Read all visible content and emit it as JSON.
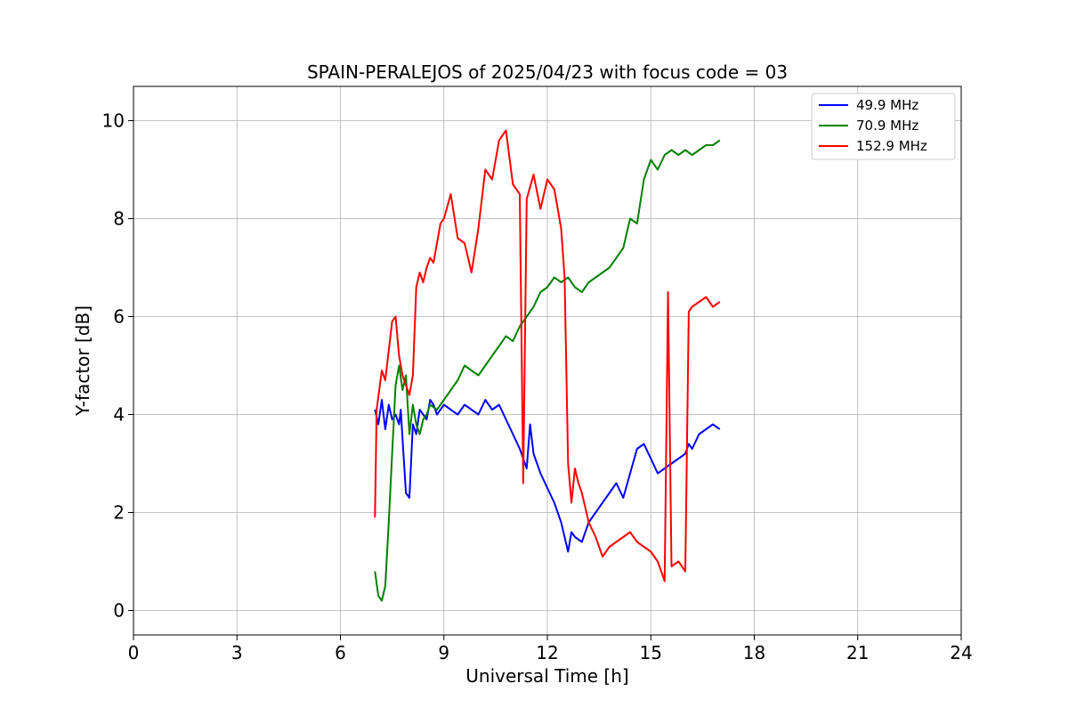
{
  "chart_data": {
    "type": "line",
    "title": "SPAIN-PERALEJOS of 2025/04/23 with focus code = 03",
    "xlabel": "Universal Time [h]",
    "ylabel": "Y-factor [dB]",
    "xlim": [
      0,
      24
    ],
    "ylim": [
      -0.5,
      10.7
    ],
    "xticks": [
      0,
      3,
      6,
      9,
      12,
      15,
      18,
      21,
      24
    ],
    "yticks": [
      0,
      2,
      4,
      6,
      8,
      10
    ],
    "grid": true,
    "legend_position": "top-right",
    "series": [
      {
        "name": "  49.9 MHz",
        "color": "#0000ff",
        "x": [
          7.0,
          7.1,
          7.2,
          7.3,
          7.4,
          7.5,
          7.6,
          7.7,
          7.75,
          7.8,
          7.9,
          8.0,
          8.1,
          8.2,
          8.3,
          8.4,
          8.5,
          8.6,
          8.7,
          8.8,
          8.9,
          9.0,
          9.2,
          9.4,
          9.6,
          9.8,
          10.0,
          10.2,
          10.4,
          10.6,
          10.8,
          11.0,
          11.2,
          11.4,
          11.5,
          11.6,
          11.8,
          12.0,
          12.2,
          12.4,
          12.5,
          12.6,
          12.7,
          12.8,
          13.0,
          13.2,
          13.4,
          13.6,
          13.8,
          14.0,
          14.2,
          14.4,
          14.6,
          14.8,
          15.0,
          15.2,
          15.4,
          15.6,
          15.8,
          16.0,
          16.1,
          16.2,
          16.4,
          16.6,
          16.8,
          17.0
        ],
        "y": [
          4.1,
          3.8,
          4.3,
          3.7,
          4.2,
          3.9,
          4.0,
          3.8,
          4.1,
          3.5,
          2.4,
          2.3,
          3.8,
          3.6,
          4.1,
          4.0,
          3.9,
          4.3,
          4.2,
          4.0,
          4.1,
          4.2,
          4.1,
          4.0,
          4.2,
          4.1,
          4.0,
          4.3,
          4.1,
          4.2,
          3.9,
          3.6,
          3.3,
          2.9,
          3.8,
          3.2,
          2.8,
          2.5,
          2.2,
          1.8,
          1.5,
          1.2,
          1.6,
          1.5,
          1.4,
          1.8,
          2.0,
          2.2,
          2.4,
          2.6,
          2.3,
          2.8,
          3.3,
          3.4,
          3.1,
          2.8,
          2.9,
          3.0,
          3.1,
          3.2,
          3.4,
          3.3,
          3.6,
          3.7,
          3.8,
          3.7
        ]
      },
      {
        "name": "  70.9 MHz",
        "color": "#008000",
        "x": [
          7.0,
          7.1,
          7.2,
          7.3,
          7.4,
          7.5,
          7.6,
          7.7,
          7.8,
          7.9,
          8.0,
          8.1,
          8.2,
          8.3,
          8.4,
          8.5,
          8.6,
          8.8,
          9.0,
          9.2,
          9.4,
          9.6,
          9.8,
          10.0,
          10.2,
          10.4,
          10.6,
          10.8,
          11.0,
          11.2,
          11.4,
          11.6,
          11.8,
          12.0,
          12.2,
          12.4,
          12.6,
          12.8,
          13.0,
          13.2,
          13.4,
          13.6,
          13.8,
          14.0,
          14.2,
          14.4,
          14.6,
          14.8,
          15.0,
          15.2,
          15.4,
          15.6,
          15.8,
          16.0,
          16.2,
          16.4,
          16.6,
          16.8,
          17.0
        ],
        "y": [
          0.8,
          0.3,
          0.2,
          0.5,
          1.8,
          3.2,
          4.6,
          5.0,
          4.5,
          4.8,
          3.6,
          4.2,
          3.8,
          3.6,
          3.9,
          4.0,
          4.2,
          4.1,
          4.3,
          4.5,
          4.7,
          5.0,
          4.9,
          4.8,
          5.0,
          5.2,
          5.4,
          5.6,
          5.5,
          5.8,
          6.0,
          6.2,
          6.5,
          6.6,
          6.8,
          6.7,
          6.8,
          6.6,
          6.5,
          6.7,
          6.8,
          6.9,
          7.0,
          7.2,
          7.4,
          8.0,
          7.9,
          8.8,
          9.2,
          9.0,
          9.3,
          9.4,
          9.3,
          9.4,
          9.3,
          9.4,
          9.5,
          9.5,
          9.6
        ]
      },
      {
        "name": "  152.9 MHz",
        "color": "#ff0000",
        "x": [
          7.0,
          7.05,
          7.2,
          7.3,
          7.5,
          7.6,
          7.7,
          7.8,
          7.9,
          8.0,
          8.1,
          8.2,
          8.3,
          8.4,
          8.5,
          8.6,
          8.7,
          8.8,
          8.9,
          9.0,
          9.2,
          9.4,
          9.6,
          9.8,
          10.0,
          10.2,
          10.4,
          10.6,
          10.8,
          11.0,
          11.2,
          11.3,
          11.4,
          11.6,
          11.8,
          12.0,
          12.2,
          12.4,
          12.5,
          12.6,
          12.7,
          12.8,
          12.9,
          13.0,
          13.2,
          13.4,
          13.6,
          13.8,
          14.0,
          14.2,
          14.4,
          14.6,
          14.8,
          15.0,
          15.2,
          15.4,
          15.5,
          15.6,
          15.8,
          16.0,
          16.1,
          16.2,
          16.4,
          16.6,
          16.8,
          17.0
        ],
        "y": [
          1.9,
          4.1,
          4.9,
          4.7,
          5.9,
          6.0,
          5.2,
          4.8,
          4.6,
          4.4,
          4.8,
          6.6,
          6.9,
          6.7,
          7.0,
          7.2,
          7.1,
          7.5,
          7.9,
          8.0,
          8.5,
          7.6,
          7.5,
          6.9,
          7.8,
          9.0,
          8.8,
          9.6,
          9.8,
          8.7,
          8.5,
          2.6,
          8.4,
          8.9,
          8.2,
          8.8,
          8.6,
          7.8,
          6.8,
          3.0,
          2.2,
          2.9,
          2.6,
          2.4,
          1.8,
          1.5,
          1.1,
          1.3,
          1.4,
          1.5,
          1.6,
          1.4,
          1.3,
          1.2,
          1.0,
          0.6,
          6.5,
          0.9,
          1.0,
          0.8,
          6.1,
          6.2,
          6.3,
          6.4,
          6.2,
          6.3
        ]
      }
    ]
  }
}
